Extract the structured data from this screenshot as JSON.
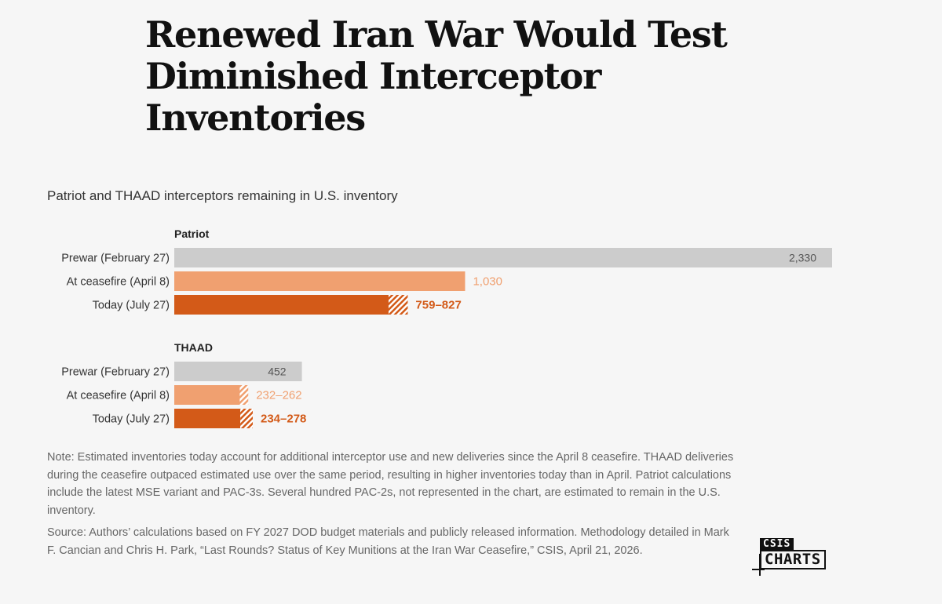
{
  "title": "Renewed Iran War Would Test Diminished Interceptor Inventories",
  "subtitle": "Patriot and THAAD interceptors remaining in U.S. inventory",
  "note": "Note: Estimated inventories today account for additional interceptor use and new deliveries since the April 8 ceasefire. THAAD deliveries during the ceasefire outpaced estimated use over the same period, resulting in higher inventories today than in April. Patriot calculations include the latest MSE variant and PAC-3s. Several hundred PAC-2s, not represented in the chart, are estimated to remain in the U.S. inventory.",
  "source": "Source: Authors’ calculations based on FY 2027 DOD budget materials and publicly released information. Methodology detailed in Mark F. Cancian and Chris H. Park, “Last Rounds? Status of Key Munitions at the Iran War Ceasefire,” CSIS, April 21, 2026.",
  "logo": {
    "top": "CSIS",
    "main": "CHARTS"
  },
  "colors": {
    "prewar": "#cccccc",
    "ceasefire": "#f0a070",
    "today": "#d35a18",
    "prewar_label": "#555555",
    "ceasefire_label": "#f0a070",
    "today_label": "#d35a18"
  },
  "chart_data": {
    "type": "bar",
    "orientation": "horizontal",
    "xlim": [
      0,
      2330
    ],
    "groups": [
      {
        "name": "Patriot",
        "bars": [
          {
            "category": "Prewar (February 27)",
            "low": 2330,
            "high": 2330,
            "label": "2,330",
            "style": "prewar",
            "label_inside": true
          },
          {
            "category": "At ceasefire (April 8)",
            "low": 1030,
            "high": 1030,
            "label": "1,030",
            "style": "ceasefire"
          },
          {
            "category": "Today (July 27)",
            "low": 759,
            "high": 827,
            "label": "759–827",
            "style": "today"
          }
        ]
      },
      {
        "name": "THAAD",
        "bars": [
          {
            "category": "Prewar (February 27)",
            "low": 452,
            "high": 452,
            "label": "452",
            "style": "prewar",
            "label_inside": true
          },
          {
            "category": "At ceasefire (April 8)",
            "low": 232,
            "high": 262,
            "label": "232–262",
            "style": "ceasefire"
          },
          {
            "category": "Today (July 27)",
            "low": 234,
            "high": 278,
            "label": "234–278",
            "style": "today"
          }
        ]
      }
    ]
  }
}
